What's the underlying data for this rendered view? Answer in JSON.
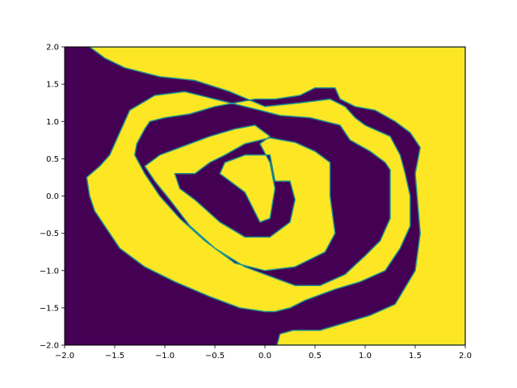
{
  "chart_data": {
    "type": "heatmap",
    "title": "",
    "xlabel": "",
    "ylabel": "",
    "xlim": [
      -2.0,
      2.0
    ],
    "ylim": [
      -2.0,
      2.0
    ],
    "xticks": [
      -2.0,
      -1.5,
      -1.0,
      -0.5,
      0.0,
      0.5,
      1.0,
      1.5,
      2.0
    ],
    "xtick_labels": [
      "−2.0",
      "−1.5",
      "−1.0",
      "−0.5",
      "0.0",
      "0.5",
      "1.0",
      "1.5",
      "2.0"
    ],
    "yticks": [
      -2.0,
      -1.5,
      -1.0,
      -0.5,
      0.0,
      0.5,
      1.0,
      1.5,
      2.0
    ],
    "ytick_labels": [
      "−2.0",
      "−1.5",
      "−1.0",
      "−0.5",
      "0.0",
      "0.5",
      "1.0",
      "1.5",
      "2.0"
    ],
    "grid": false,
    "colormap": "viridis",
    "value_range": [
      0,
      1
    ],
    "colors": {
      "low": "#440154",
      "mid": "#21918c",
      "high": "#fde725"
    },
    "description_of_values": "binary classification field over a 2D grid: 1 (yellow) vs 0 (purple), forming a spiral",
    "regions": {
      "class_1_regions_xy": [
        [
          [
            -0.02,
            2.0
          ],
          [
            0.35,
            2.0
          ],
          [
            2.0,
            2.0
          ],
          [
            2.0,
            -2.0
          ],
          [
            0.12,
            -2.0
          ],
          [
            0.15,
            -1.85
          ],
          [
            0.28,
            -1.8
          ],
          [
            0.55,
            -1.8
          ],
          [
            1.05,
            -1.6
          ],
          [
            1.3,
            -1.45
          ],
          [
            1.5,
            -1.0
          ],
          [
            1.55,
            -0.5
          ],
          [
            1.5,
            0.3
          ],
          [
            1.55,
            0.65
          ],
          [
            1.45,
            0.85
          ],
          [
            1.3,
            1.0
          ],
          [
            1.1,
            1.15
          ],
          [
            0.9,
            1.2
          ],
          [
            0.75,
            1.3
          ],
          [
            0.7,
            1.45
          ],
          [
            0.5,
            1.45
          ],
          [
            0.35,
            1.35
          ],
          [
            0.1,
            1.3
          ],
          [
            -0.1,
            1.3
          ],
          [
            -0.3,
            1.25
          ],
          [
            -0.5,
            1.2
          ],
          [
            -0.75,
            1.1
          ],
          [
            -1.0,
            1.05
          ],
          [
            -1.15,
            1.0
          ],
          [
            -1.2,
            0.9
          ],
          [
            -1.28,
            0.7
          ],
          [
            -1.3,
            0.55
          ],
          [
            -1.2,
            0.3
          ],
          [
            -1.05,
            0.0
          ],
          [
            -0.85,
            -0.3
          ],
          [
            -0.6,
            -0.6
          ],
          [
            -0.3,
            -0.9
          ],
          [
            0.0,
            -1.0
          ],
          [
            0.3,
            -0.95
          ],
          [
            0.6,
            -0.75
          ],
          [
            0.7,
            -0.5
          ],
          [
            0.65,
            0.0
          ],
          [
            0.65,
            0.45
          ],
          [
            0.5,
            0.6
          ],
          [
            0.3,
            0.72
          ],
          [
            0.05,
            0.78
          ],
          [
            -0.2,
            0.7
          ],
          [
            -0.4,
            0.55
          ],
          [
            -0.55,
            0.45
          ],
          [
            -0.7,
            0.3
          ],
          [
            -0.9,
            0.3
          ],
          [
            -0.85,
            0.1
          ],
          [
            -0.7,
            -0.05
          ],
          [
            -0.45,
            -0.35
          ],
          [
            -0.2,
            -0.55
          ],
          [
            0.05,
            -0.55
          ],
          [
            0.25,
            -0.35
          ],
          [
            0.3,
            -0.05
          ],
          [
            0.25,
            0.2
          ],
          [
            0.1,
            0.2
          ],
          [
            0.05,
            0.55
          ],
          [
            -0.05,
            0.55
          ],
          [
            -0.2,
            0.55
          ],
          [
            -0.4,
            0.45
          ],
          [
            -0.45,
            0.3
          ],
          [
            -0.2,
            0.05
          ],
          [
            -0.05,
            -0.35
          ],
          [
            0.05,
            -0.3
          ],
          [
            0.1,
            0.1
          ],
          [
            0.05,
            0.45
          ],
          [
            -0.05,
            0.7
          ],
          [
            0.05,
            0.8
          ],
          [
            -0.1,
            0.95
          ],
          [
            -0.3,
            0.9
          ],
          [
            -0.55,
            0.8
          ],
          [
            -0.85,
            0.65
          ],
          [
            -1.05,
            0.55
          ],
          [
            -1.2,
            0.4
          ],
          [
            -1.1,
            0.2
          ],
          [
            -0.95,
            -0.05
          ],
          [
            -0.75,
            -0.4
          ],
          [
            -0.5,
            -0.7
          ],
          [
            -0.2,
            -0.95
          ],
          [
            0.1,
            -1.1
          ],
          [
            0.3,
            -1.2
          ],
          [
            0.55,
            -1.2
          ],
          [
            0.8,
            -1.05
          ],
          [
            1.0,
            -0.8
          ],
          [
            1.15,
            -0.6
          ],
          [
            1.25,
            -0.3
          ],
          [
            1.25,
            0.1
          ],
          [
            1.25,
            0.35
          ],
          [
            1.2,
            0.45
          ],
          [
            1.05,
            0.6
          ],
          [
            0.85,
            0.75
          ],
          [
            0.75,
            0.95
          ],
          [
            0.45,
            1.05
          ],
          [
            0.15,
            1.08
          ],
          [
            -0.05,
            1.15
          ],
          [
            -0.2,
            1.2
          ],
          [
            -0.5,
            1.3
          ],
          [
            -0.8,
            1.4
          ],
          [
            -1.1,
            1.35
          ],
          [
            -1.35,
            1.15
          ],
          [
            -1.45,
            0.85
          ],
          [
            -1.55,
            0.55
          ],
          [
            -1.65,
            0.4
          ],
          [
            -1.78,
            0.25
          ],
          [
            -1.75,
            0.0
          ],
          [
            -1.7,
            -0.2
          ],
          [
            -1.6,
            -0.4
          ],
          [
            -1.45,
            -0.7
          ],
          [
            -1.2,
            -0.95
          ],
          [
            -0.9,
            -1.15
          ],
          [
            -0.55,
            -1.35
          ],
          [
            -0.25,
            -1.5
          ],
          [
            0.0,
            -1.55
          ],
          [
            0.1,
            -1.55
          ],
          [
            0.25,
            -1.5
          ],
          [
            0.4,
            -1.4
          ],
          [
            0.7,
            -1.25
          ],
          [
            0.95,
            -1.15
          ],
          [
            1.2,
            -1.0
          ],
          [
            1.35,
            -0.7
          ],
          [
            1.45,
            -0.4
          ],
          [
            1.45,
            0.0
          ],
          [
            1.4,
            0.3
          ],
          [
            1.35,
            0.55
          ],
          [
            1.25,
            0.8
          ],
          [
            1.0,
            0.95
          ],
          [
            0.9,
            1.05
          ],
          [
            0.8,
            1.2
          ],
          [
            0.65,
            1.3
          ],
          [
            0.35,
            1.25
          ],
          [
            0.0,
            1.2
          ],
          [
            -0.35,
            1.4
          ],
          [
            -0.7,
            1.55
          ],
          [
            -1.05,
            1.6
          ],
          [
            -1.4,
            1.72
          ],
          [
            -1.6,
            1.85
          ],
          [
            -1.75,
            2.0
          ],
          [
            -0.02,
            2.0
          ]
        ]
      ]
    }
  }
}
